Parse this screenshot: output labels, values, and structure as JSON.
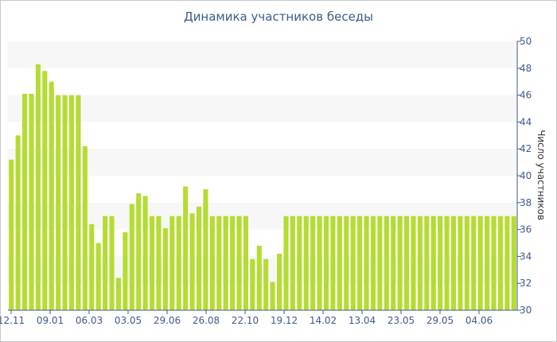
{
  "chart_data": {
    "type": "bar",
    "title": "Динамика участников беседы",
    "ylabel": "Число участников",
    "ylim": [
      30,
      50
    ],
    "y_ticks": [
      30,
      32,
      34,
      36,
      38,
      40,
      42,
      44,
      46,
      48,
      50
    ],
    "x_tick_labels": [
      "12.11",
      "09.01",
      "06.03",
      "03.05",
      "29.06",
      "26.08",
      "22.10",
      "19.12",
      "14.02",
      "13.04",
      "23.05",
      "29.05",
      "04.06"
    ],
    "bar_color": "#b5dc31",
    "band_color": "#f7f7f7",
    "axis_side": "right",
    "grid": false,
    "values": [
      41.2,
      43,
      46.1,
      46.1,
      48.3,
      47.8,
      47,
      46,
      46,
      46,
      46,
      42.2,
      36.4,
      35,
      37,
      37,
      32.4,
      35.8,
      37.9,
      38.7,
      38.5,
      37,
      37,
      36.1,
      37,
      37,
      39.2,
      37.2,
      37.7,
      39,
      37,
      37,
      37,
      37,
      37,
      37,
      33.8,
      34.8,
      33.8,
      32.1,
      34.2,
      37,
      37,
      37,
      37,
      37,
      37,
      37,
      37,
      37,
      37,
      37,
      37,
      37,
      37,
      37,
      37,
      37,
      37,
      37,
      37,
      37,
      37,
      37,
      37,
      37,
      37,
      37,
      37,
      37,
      37,
      37,
      37,
      37,
      37,
      37
    ]
  }
}
